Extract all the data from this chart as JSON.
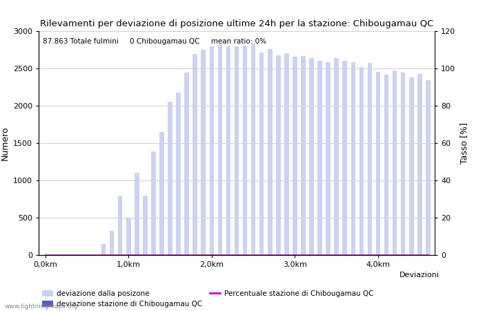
{
  "title": "Rilevamenti per deviazione di posizione ultime 24h per la stazione: Chibougamau QC",
  "ylabel_left": "Numero",
  "ylabel_right": "Tasso [%]",
  "annotation": "87.863 Totale fulmini     0 Chibougamau QC     mean ratio: 0%",
  "watermark": "www.lightningmaps.org",
  "bar_color_light": "#cdd2f0",
  "bar_color_dark": "#5060c0",
  "line_color": "#cc00cc",
  "background_color": "#ffffff",
  "grid_color": "#bbbbbb",
  "ylim_left": [
    0,
    3000
  ],
  "ylim_right": [
    0,
    120
  ],
  "xtick_labels": [
    "0,0km",
    "1,0km",
    "2,0km",
    "3,0km",
    "4,0km"
  ],
  "xtick_positions": [
    0,
    10,
    20,
    30,
    40
  ],
  "ytick_left": [
    0,
    500,
    1000,
    1500,
    2000,
    2500,
    3000
  ],
  "ytick_right": [
    0,
    20,
    40,
    60,
    80,
    100,
    120
  ],
  "bar_values": [
    0,
    0,
    0,
    0,
    0,
    0,
    0,
    150,
    320,
    800,
    500,
    1100,
    800,
    1390,
    1650,
    2060,
    2180,
    2440,
    2690,
    2750,
    2800,
    2820,
    2800,
    2800,
    2810,
    2830,
    2710,
    2760,
    2680,
    2700,
    2660,
    2670,
    2640,
    2600,
    2580,
    2640,
    2600,
    2580,
    2520,
    2570,
    2450,
    2420,
    2470,
    2440,
    2380,
    2430,
    2340
  ],
  "station_bar_values": [
    0,
    0,
    0,
    0,
    0,
    0,
    0,
    0,
    0,
    0,
    0,
    0,
    0,
    0,
    0,
    0,
    0,
    0,
    0,
    0,
    0,
    0,
    0,
    0,
    0,
    0,
    0,
    0,
    0,
    0,
    0,
    0,
    0,
    0,
    0,
    0,
    0,
    0,
    0,
    0,
    0,
    0,
    0,
    0,
    0,
    0,
    0
  ],
  "percentage_values": [
    0,
    0,
    0,
    0,
    0,
    0,
    0,
    0,
    0,
    0,
    0,
    0,
    0,
    0,
    0,
    0,
    0,
    0,
    0,
    0,
    0,
    0,
    0,
    0,
    0,
    0,
    0,
    0,
    0,
    0,
    0,
    0,
    0,
    0,
    0,
    0,
    0,
    0,
    0,
    0,
    0,
    0,
    0,
    0,
    0,
    0,
    0
  ],
  "legend_light_label": "deviazione dalla posizone",
  "legend_dark_label": "deviazione stazione di Chibougamau QC",
  "legend_line_label": "Percentuale stazione di Chibougamau QC",
  "xlabel_right": "Deviazioni",
  "num_bars": 47,
  "bar_width": 0.55
}
